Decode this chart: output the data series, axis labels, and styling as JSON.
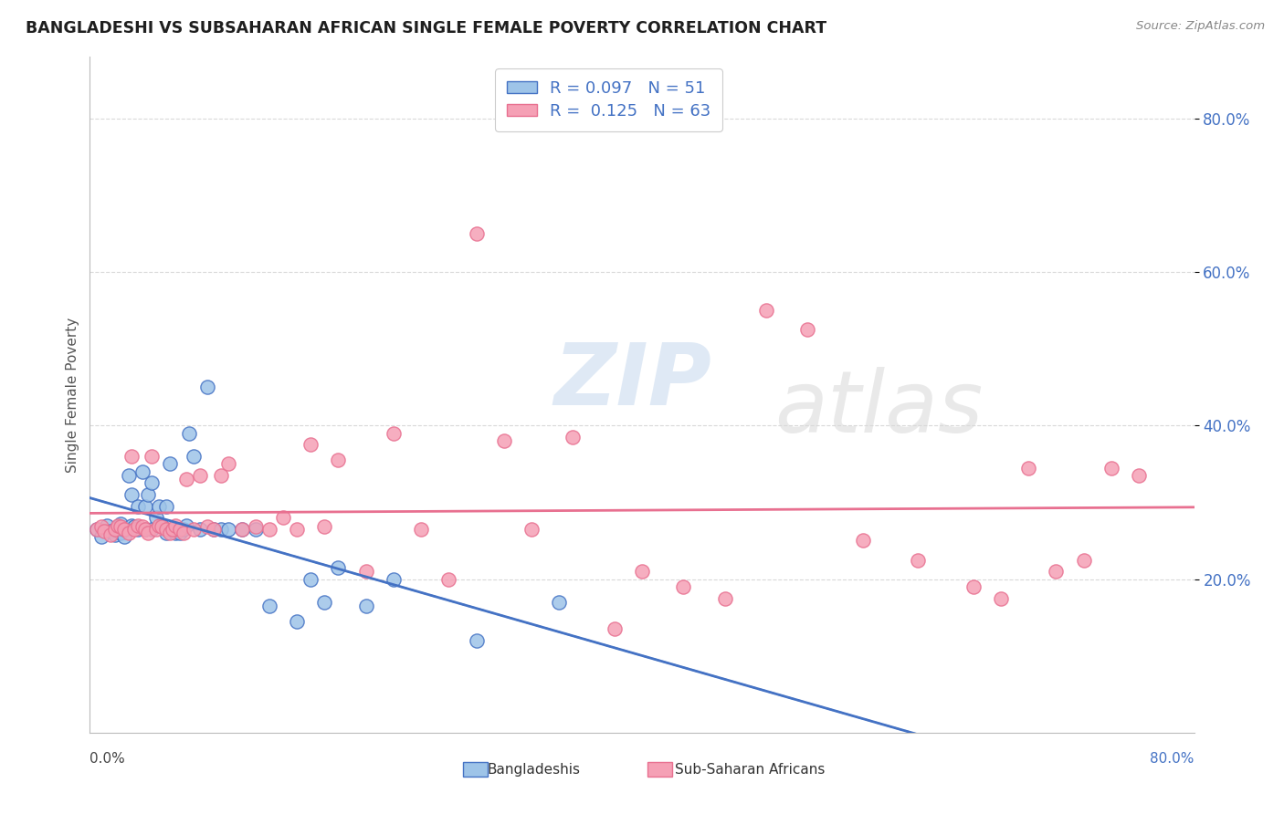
{
  "title": "BANGLADESHI VS SUBSAHARAN AFRICAN SINGLE FEMALE POVERTY CORRELATION CHART",
  "source": "Source: ZipAtlas.com",
  "ylabel": "Single Female Poverty",
  "yticks_labels": [
    "20.0%",
    "40.0%",
    "60.0%",
    "80.0%"
  ],
  "ytick_vals": [
    0.2,
    0.4,
    0.6,
    0.8
  ],
  "xrange": [
    0.0,
    0.8
  ],
  "yrange": [
    0.0,
    0.88
  ],
  "legend_label1": "R = 0.097   N = 51",
  "legend_label2": "R =  0.125   N = 63",
  "watermark": "ZIPatlas",
  "bd_scatter_color": "#9ec4e8",
  "ss_scatter_color": "#f5a0b5",
  "bd_line_color": "#4472c4",
  "ss_line_color": "#e87090",
  "bd_dash_color": "#4472c4",
  "grid_color": "#d9d9d9",
  "title_color": "#1f1f1f",
  "ytick_color": "#4472c4",
  "legend_text_color": "#4472c4",
  "bd_x": [
    0.005,
    0.008,
    0.012,
    0.015,
    0.018,
    0.02,
    0.022,
    0.022,
    0.025,
    0.025,
    0.028,
    0.03,
    0.03,
    0.032,
    0.035,
    0.035,
    0.038,
    0.04,
    0.04,
    0.042,
    0.045,
    0.045,
    0.048,
    0.05,
    0.052,
    0.055,
    0.055,
    0.058,
    0.06,
    0.062,
    0.065,
    0.068,
    0.07,
    0.072,
    0.075,
    0.08,
    0.085,
    0.09,
    0.095,
    0.1,
    0.11,
    0.12,
    0.13,
    0.15,
    0.16,
    0.17,
    0.18,
    0.2,
    0.22,
    0.28,
    0.34
  ],
  "bd_y": [
    0.265,
    0.255,
    0.27,
    0.262,
    0.258,
    0.268,
    0.26,
    0.272,
    0.255,
    0.265,
    0.335,
    0.31,
    0.27,
    0.268,
    0.295,
    0.265,
    0.34,
    0.265,
    0.295,
    0.31,
    0.325,
    0.265,
    0.28,
    0.295,
    0.27,
    0.295,
    0.26,
    0.35,
    0.265,
    0.26,
    0.26,
    0.265,
    0.27,
    0.39,
    0.36,
    0.265,
    0.45,
    0.265,
    0.265,
    0.265,
    0.265,
    0.265,
    0.165,
    0.145,
    0.2,
    0.17,
    0.215,
    0.165,
    0.2,
    0.12,
    0.17
  ],
  "ss_x": [
    0.005,
    0.008,
    0.01,
    0.015,
    0.018,
    0.02,
    0.022,
    0.025,
    0.028,
    0.03,
    0.032,
    0.035,
    0.038,
    0.04,
    0.042,
    0.045,
    0.048,
    0.05,
    0.052,
    0.055,
    0.058,
    0.06,
    0.062,
    0.065,
    0.068,
    0.07,
    0.075,
    0.08,
    0.085,
    0.09,
    0.095,
    0.1,
    0.11,
    0.12,
    0.13,
    0.14,
    0.15,
    0.16,
    0.17,
    0.18,
    0.2,
    0.22,
    0.24,
    0.26,
    0.28,
    0.3,
    0.32,
    0.35,
    0.38,
    0.4,
    0.43,
    0.46,
    0.49,
    0.52,
    0.56,
    0.6,
    0.64,
    0.66,
    0.68,
    0.7,
    0.72,
    0.74,
    0.76
  ],
  "ss_y": [
    0.265,
    0.268,
    0.262,
    0.258,
    0.265,
    0.27,
    0.268,
    0.265,
    0.26,
    0.36,
    0.265,
    0.27,
    0.268,
    0.265,
    0.26,
    0.36,
    0.265,
    0.27,
    0.268,
    0.265,
    0.26,
    0.265,
    0.27,
    0.265,
    0.26,
    0.33,
    0.265,
    0.335,
    0.268,
    0.265,
    0.335,
    0.35,
    0.265,
    0.268,
    0.265,
    0.28,
    0.265,
    0.375,
    0.268,
    0.355,
    0.21,
    0.39,
    0.265,
    0.2,
    0.65,
    0.38,
    0.265,
    0.385,
    0.135,
    0.21,
    0.19,
    0.175,
    0.55,
    0.525,
    0.25,
    0.225,
    0.19,
    0.175,
    0.345,
    0.21,
    0.225,
    0.345,
    0.335
  ]
}
